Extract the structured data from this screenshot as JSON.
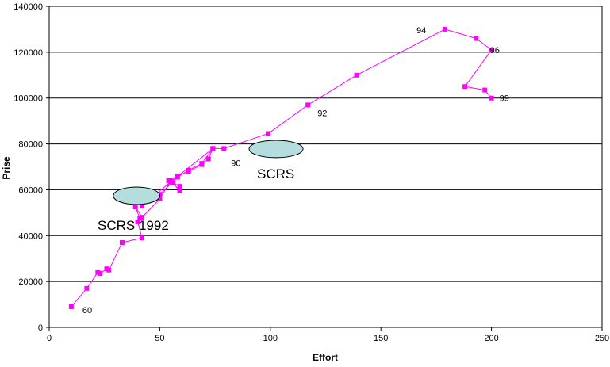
{
  "chart_data": {
    "type": "line",
    "xlabel": "Effort",
    "ylabel": "Prise",
    "xlim": [
      0,
      250
    ],
    "ylim": [
      0,
      140000
    ],
    "xticks": [
      0,
      50,
      100,
      150,
      200,
      250
    ],
    "yticks": [
      0,
      20000,
      40000,
      60000,
      80000,
      100000,
      120000,
      140000
    ],
    "grid": "horizontal",
    "line_color": "#ff00ff",
    "series": [
      {
        "points": [
          [
            10,
            9000
          ],
          [
            17,
            17000
          ],
          [
            22,
            24000
          ],
          [
            23,
            23500
          ],
          [
            26,
            25500
          ],
          [
            27,
            25000
          ],
          [
            33,
            37000
          ],
          [
            42,
            39000
          ],
          [
            40,
            46000
          ],
          [
            41,
            47500
          ],
          [
            39,
            52500
          ],
          [
            42,
            48000
          ],
          [
            50,
            56000
          ],
          [
            55,
            64000
          ],
          [
            56,
            63000
          ],
          [
            59,
            59500
          ],
          [
            59,
            61500
          ],
          [
            54,
            64000
          ],
          [
            58,
            66000
          ],
          [
            63,
            68000
          ],
          [
            69,
            71000
          ],
          [
            72,
            73500
          ],
          [
            74,
            78000
          ],
          [
            69,
            71500
          ],
          [
            63,
            68500
          ],
          [
            58,
            65500
          ],
          [
            50,
            58000
          ],
          [
            42,
            53000
          ],
          [
            55,
            63500
          ],
          [
            74,
            78000
          ],
          [
            79,
            78000
          ],
          [
            99,
            84500
          ],
          [
            117,
            97000
          ],
          [
            139,
            110000
          ],
          [
            179,
            130000
          ],
          [
            193,
            126000
          ],
          [
            200,
            121000
          ],
          [
            188,
            105000
          ],
          [
            197,
            103500
          ],
          [
            200,
            100000
          ]
        ]
      }
    ],
    "annotations": [
      {
        "text": "60",
        "x": 10,
        "y": 9000
      },
      {
        "text": "90",
        "x": 79,
        "y": 78000
      },
      {
        "text": "92",
        "x": 117,
        "y": 97000
      },
      {
        "text": "94",
        "x": 179,
        "y": 130000
      },
      {
        "text": "96",
        "x": 200,
        "y": 121000
      },
      {
        "text": "99",
        "x": 200,
        "y": 100000
      }
    ],
    "ellipses": [
      {
        "label": "SCRS 1992",
        "cx": 39.5,
        "cy": 57400,
        "rx": 10.5,
        "ry": 3800,
        "fill": "#b4dede"
      },
      {
        "label": "SCRS",
        "cx": 102.6,
        "cy": 77800,
        "rx": 12.2,
        "ry": 3800,
        "fill": "#b4dede"
      }
    ]
  }
}
